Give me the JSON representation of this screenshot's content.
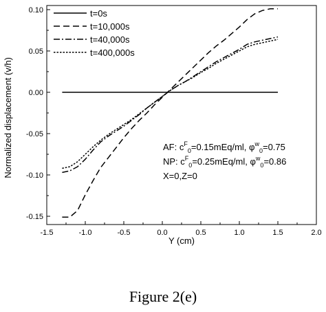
{
  "caption": "Figure 2(e)",
  "chart_data": {
    "type": "line",
    "title": "",
    "xlabel": "Y (cm)",
    "ylabel": "Normalized displacement (v/h)",
    "xlim": [
      -1.5,
      2.0
    ],
    "ylim": [
      -0.16,
      0.105
    ],
    "xticks": [
      -1.5,
      -1.0,
      -0.5,
      0.0,
      0.5,
      1.0,
      1.5,
      2.0
    ],
    "xtick_labels": [
      "-1.5",
      "-1.0",
      "-0.5",
      "0.0",
      "0.5",
      "1.0",
      "1.5",
      "2.0"
    ],
    "yticks": [
      -0.15,
      -0.1,
      -0.05,
      0.0,
      0.05,
      0.1
    ],
    "ytick_labels": [
      "-0.15",
      "-0.10",
      "-0.05",
      "0.00",
      "0.05",
      "0.10"
    ],
    "grid": false,
    "legend_position": "top-left",
    "series": [
      {
        "name": "t=0s",
        "style": "solid",
        "points": [
          [
            -1.3,
            0.0
          ],
          [
            1.5,
            0.0
          ]
        ]
      },
      {
        "name": "t=10,000s",
        "style": "dashed",
        "points": [
          [
            -1.3,
            -0.151
          ],
          [
            -1.2,
            -0.151
          ],
          [
            -1.1,
            -0.143
          ],
          [
            -1.0,
            -0.124
          ],
          [
            -0.9,
            -0.107
          ],
          [
            -0.8,
            -0.091
          ],
          [
            -0.7,
            -0.079
          ],
          [
            -0.6,
            -0.067
          ],
          [
            -0.5,
            -0.055
          ],
          [
            -0.4,
            -0.044
          ],
          [
            -0.3,
            -0.034
          ],
          [
            -0.2,
            -0.025
          ],
          [
            -0.1,
            -0.015
          ],
          [
            0.0,
            -0.006
          ],
          [
            0.1,
            0.003
          ],
          [
            0.2,
            0.012
          ],
          [
            0.3,
            0.021
          ],
          [
            0.4,
            0.03
          ],
          [
            0.5,
            0.039
          ],
          [
            0.6,
            0.048
          ],
          [
            0.7,
            0.056
          ],
          [
            0.8,
            0.063
          ],
          [
            0.9,
            0.071
          ],
          [
            1.0,
            0.079
          ],
          [
            1.1,
            0.088
          ],
          [
            1.2,
            0.095
          ],
          [
            1.3,
            0.099
          ],
          [
            1.4,
            0.101
          ],
          [
            1.5,
            0.101
          ]
        ]
      },
      {
        "name": "t=40,000s",
        "style": "dashdot",
        "points": [
          [
            -1.3,
            -0.097
          ],
          [
            -1.2,
            -0.095
          ],
          [
            -1.1,
            -0.09
          ],
          [
            -1.0,
            -0.081
          ],
          [
            -0.9,
            -0.07
          ],
          [
            -0.8,
            -0.06
          ],
          [
            -0.7,
            -0.053
          ],
          [
            -0.6,
            -0.047
          ],
          [
            -0.5,
            -0.041
          ],
          [
            -0.4,
            -0.034
          ],
          [
            -0.3,
            -0.027
          ],
          [
            -0.2,
            -0.019
          ],
          [
            -0.1,
            -0.012
          ],
          [
            0.0,
            -0.005
          ],
          [
            0.1,
            0.002
          ],
          [
            0.2,
            0.008
          ],
          [
            0.3,
            0.013
          ],
          [
            0.4,
            0.019
          ],
          [
            0.5,
            0.025
          ],
          [
            0.6,
            0.031
          ],
          [
            0.7,
            0.037
          ],
          [
            0.8,
            0.042
          ],
          [
            0.9,
            0.047
          ],
          [
            1.0,
            0.052
          ],
          [
            1.1,
            0.058
          ],
          [
            1.2,
            0.061
          ],
          [
            1.3,
            0.063
          ],
          [
            1.4,
            0.065
          ],
          [
            1.5,
            0.067
          ]
        ]
      },
      {
        "name": "t=400,000s",
        "style": "dotted",
        "points": [
          [
            -1.3,
            -0.092
          ],
          [
            -1.2,
            -0.09
          ],
          [
            -1.1,
            -0.084
          ],
          [
            -1.0,
            -0.075
          ],
          [
            -0.9,
            -0.066
          ],
          [
            -0.8,
            -0.058
          ],
          [
            -0.7,
            -0.051
          ],
          [
            -0.6,
            -0.045
          ],
          [
            -0.5,
            -0.039
          ],
          [
            -0.4,
            -0.033
          ],
          [
            -0.3,
            -0.026
          ],
          [
            -0.2,
            -0.019
          ],
          [
            -0.1,
            -0.012
          ],
          [
            0.0,
            -0.005
          ],
          [
            0.1,
            0.002
          ],
          [
            0.2,
            0.008
          ],
          [
            0.3,
            0.013
          ],
          [
            0.4,
            0.018
          ],
          [
            0.5,
            0.024
          ],
          [
            0.6,
            0.029
          ],
          [
            0.7,
            0.035
          ],
          [
            0.8,
            0.04
          ],
          [
            0.9,
            0.045
          ],
          [
            1.0,
            0.05
          ],
          [
            1.1,
            0.055
          ],
          [
            1.2,
            0.058
          ],
          [
            1.3,
            0.06
          ],
          [
            1.4,
            0.062
          ],
          [
            1.5,
            0.064
          ]
        ]
      }
    ],
    "annotations": [
      {
        "prefix": "AF: c",
        "sup1": "F",
        "sub1": "0",
        "mid": "=0.15mEq/ml, φ",
        "sup2": "w",
        "sub2": "0",
        "suffix": "=0.75"
      },
      {
        "prefix": "NP: c",
        "sup1": "F",
        "sub1": "0",
        "mid": "=0.25mEq/ml, φ",
        "sup2": "w",
        "sub2": "0",
        "suffix": "=0.86"
      },
      {
        "text": "X=0,Z=0"
      }
    ]
  }
}
